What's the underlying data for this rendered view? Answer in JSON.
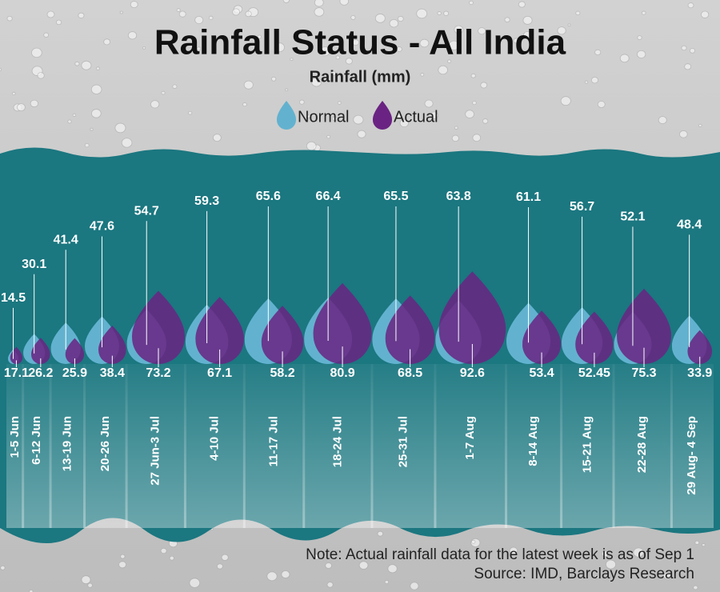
{
  "chart_data": {
    "type": "pictograph",
    "title": "Rainfall Status - All India",
    "subtitle": "Rainfall (mm)",
    "categories": [
      "1-5 Jun",
      "6-12 Jun",
      "13-19 Jun",
      "20-26 Jun",
      "27 Jun-3 Jul",
      "4-10 Jul",
      "11-17 Jul",
      "18-24 Jul",
      "25-31 Jul",
      "1-7 Aug",
      "8-14 Aug",
      "15-21 Aug",
      "22-28 Aug",
      "29 Aug- 4 Sep"
    ],
    "series": [
      {
        "name": "Normal",
        "color": "#62b2cf",
        "values": [
          14.5,
          30.1,
          41.4,
          47.6,
          54.7,
          59.3,
          65.6,
          66.4,
          65.5,
          63.8,
          61.1,
          56.7,
          52.1,
          48.4
        ]
      },
      {
        "name": "Actual",
        "color": "#6a2382",
        "values": [
          17.1,
          26.2,
          25.9,
          38.4,
          73.2,
          67.1,
          58.2,
          80.9,
          68.5,
          92.6,
          53.4,
          52.45,
          75.3,
          33.9
        ]
      }
    ],
    "notes": [
      "Note: Actual rainfall data for the latest week is as of Sep 1",
      "Source: IMD, Barclays Research"
    ]
  }
}
